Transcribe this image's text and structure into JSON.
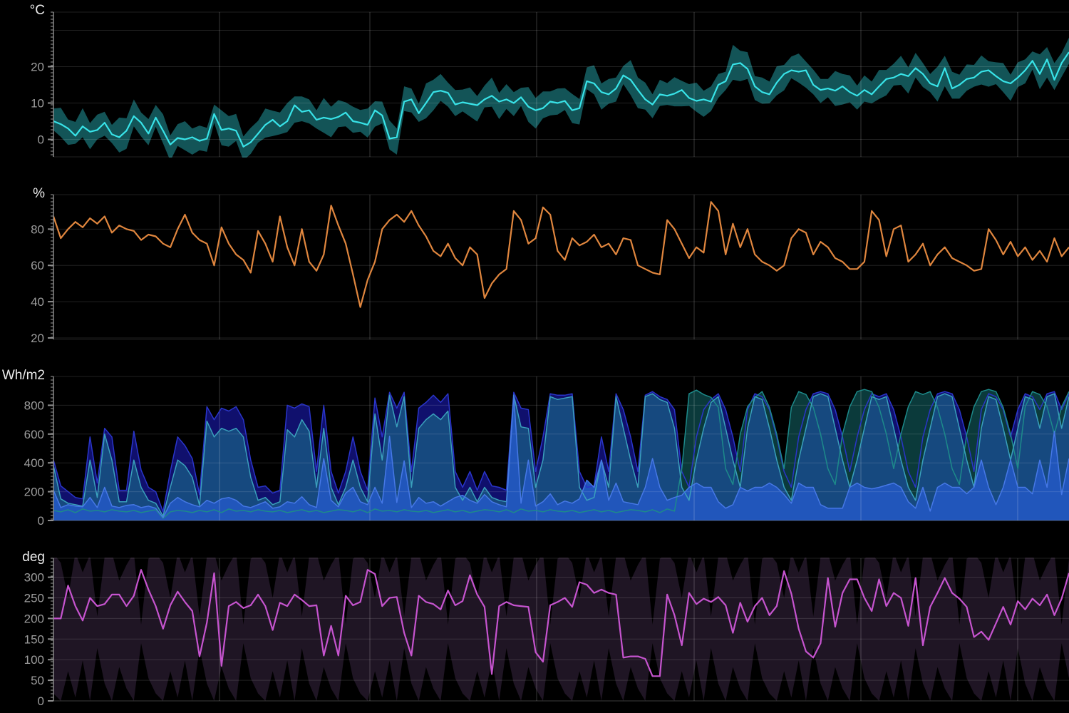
{
  "page": {
    "background": "#000000"
  },
  "chart_data": [
    {
      "type": "line",
      "name": "temperature-with-minmax-band",
      "unit": "°C",
      "ylim": [
        -4.8,
        35
      ],
      "y_ticks": [
        0,
        10,
        20
      ],
      "grid_values": [
        0,
        10,
        20,
        30
      ],
      "line_color": "#38e3e8",
      "band_color": "#135457",
      "mean": [
        5,
        4.2,
        3,
        1,
        3.6,
        2.1,
        2.6,
        4.6,
        1.4,
        0.6,
        2.4,
        6.4,
        4.6,
        1.6,
        6,
        2.4,
        -1.4,
        0.4,
        0,
        0.6,
        -0.4,
        0.2,
        7,
        2.6,
        3,
        2.4,
        -2,
        -0.8,
        1.6,
        4,
        5.4,
        3.6,
        5,
        9.4,
        7.6,
        8,
        5.4,
        6,
        5.6,
        6.2,
        7.4,
        5,
        4.6,
        4,
        8,
        6.6,
        0.2,
        0.6,
        10.4,
        11,
        7.2,
        10,
        13,
        13.4,
        12.8,
        9.6,
        10.2,
        9.8,
        9.4,
        11,
        12,
        10.4,
        11,
        10,
        11.6,
        9,
        8,
        8.6,
        10.4,
        10,
        10.6,
        8,
        8.6,
        16,
        15.4,
        13,
        12.4,
        14,
        17.6,
        16.4,
        13.6,
        11,
        9.6,
        12.4,
        12,
        12.6,
        13.6,
        11.4,
        10.6,
        11,
        10.4,
        15,
        16,
        20.6,
        21,
        19.4,
        14.6,
        13,
        12.4,
        15.6,
        18,
        19,
        18.6,
        19,
        15,
        13.6,
        14,
        13.4,
        14.6,
        13,
        12,
        13.6,
        12.4,
        14.6,
        16.6,
        17,
        18,
        17.4,
        19.6,
        18,
        15.4,
        14.6,
        19.6,
        14,
        15,
        16.6,
        17,
        18.6,
        19,
        17.4,
        16,
        15.4,
        17,
        19,
        21.6,
        18,
        22,
        16.4,
        21,
        24
      ],
      "band_up_pattern": [
        3.5,
        4.5,
        2.5,
        3.8,
        5,
        2.4,
        4.2,
        3,
        2.6,
        5.4,
        3.4,
        4.6,
        2.8,
        4
      ],
      "band_down_pattern": [
        2.5,
        3.5,
        4.5,
        2.2,
        3,
        4.8,
        2.6,
        3.6,
        2.4,
        4.2,
        5,
        2.8,
        3.8,
        3.2
      ]
    },
    {
      "type": "line",
      "name": "relative-humidity",
      "unit": "%",
      "ylim": [
        19.2,
        99
      ],
      "y_ticks": [
        20,
        40,
        60,
        80
      ],
      "grid_values": [
        20,
        40,
        60,
        80
      ],
      "line_color": "#e0863e",
      "values": [
        87,
        75,
        80,
        84,
        81,
        86,
        83,
        87,
        78,
        82,
        80,
        79,
        74,
        77,
        76,
        72,
        70,
        80,
        88,
        78,
        74,
        72,
        60,
        81,
        72,
        66,
        63,
        56,
        79,
        72,
        62,
        87,
        70,
        60,
        80,
        62,
        57,
        66,
        93,
        82,
        72,
        55,
        37,
        52,
        62,
        80,
        85,
        88,
        84,
        90,
        82,
        76,
        68,
        65,
        72,
        64,
        60,
        70,
        66,
        42,
        50,
        55,
        58,
        90,
        85,
        72,
        75,
        92,
        88,
        68,
        63,
        75,
        71,
        73,
        77,
        70,
        72,
        66,
        75,
        74,
        60,
        58,
        56,
        55,
        85,
        80,
        72,
        64,
        70,
        67,
        95,
        90,
        66,
        83,
        70,
        80,
        66,
        62,
        60,
        57,
        60,
        75,
        80,
        78,
        66,
        73,
        70,
        64,
        62,
        58,
        58,
        62,
        90,
        85,
        65,
        80,
        82,
        62,
        66,
        72,
        60,
        66,
        70,
        64,
        62,
        60,
        57,
        58,
        80,
        74,
        66,
        73,
        65,
        70,
        63,
        68,
        62,
        75,
        65,
        70
      ]
    },
    {
      "type": "area",
      "name": "solar-radiation",
      "unit": "Wh/m2",
      "ylim": [
        0,
        1000
      ],
      "y_ticks": [
        0,
        200,
        400,
        600,
        800
      ],
      "grid_values": [
        0,
        200,
        400,
        600,
        800
      ],
      "series": [
        {
          "name": "dark-navy-radiation",
          "fill": "#10106d",
          "stroke": "#2a35c9",
          "values": [
            420,
            240,
            200,
            160,
            150,
            580,
            260,
            640,
            580,
            210,
            210,
            620,
            350,
            230,
            200,
            60,
            340,
            580,
            520,
            430,
            180,
            790,
            700,
            780,
            760,
            790,
            700,
            420,
            230,
            240,
            190,
            210,
            800,
            780,
            810,
            790,
            340,
            800,
            340,
            190,
            340,
            580,
            340,
            210,
            850,
            580,
            890,
            780,
            890,
            340,
            780,
            820,
            870,
            820,
            880,
            340,
            230,
            340,
            210,
            340,
            240,
            230,
            210,
            890,
            780,
            770,
            340,
            580,
            880,
            870,
            870,
            880,
            340,
            230,
            240,
            580,
            340,
            880,
            770,
            580,
            340,
            870,
            895,
            860,
            840,
            770,
            340,
            230,
            580,
            770,
            840,
            880,
            770,
            580,
            340,
            770,
            880,
            860,
            770,
            580,
            340,
            230,
            580,
            770,
            880,
            895,
            880,
            770,
            580,
            340,
            580,
            770,
            880,
            860,
            880,
            770,
            580,
            340,
            230,
            580,
            770,
            880,
            895,
            880,
            770,
            580,
            340,
            770,
            880,
            860,
            770,
            580,
            770,
            880,
            860,
            770,
            880,
            895,
            770,
            880
          ]
        },
        {
          "name": "dark-teal-radiation",
          "fill": "#0b3a3b",
          "stroke": "#1d8a8a",
          "values": [
            70,
            60,
            75,
            55,
            80,
            65,
            70,
            60,
            75,
            65,
            60,
            70,
            55,
            65,
            75,
            15,
            60,
            70,
            65,
            55,
            70,
            60,
            75,
            55,
            80,
            65,
            70,
            60,
            75,
            65,
            60,
            70,
            55,
            65,
            75,
            60,
            70,
            55,
            65,
            75,
            70,
            60,
            75,
            55,
            80,
            65,
            70,
            60,
            75,
            65,
            60,
            70,
            55,
            65,
            75,
            60,
            70,
            55,
            65,
            75,
            70,
            60,
            75,
            55,
            80,
            65,
            70,
            60,
            75,
            65,
            60,
            70,
            55,
            65,
            75,
            60,
            70,
            55,
            65,
            75,
            70,
            60,
            75,
            55,
            80,
            65,
            360,
            880,
            905,
            875,
            855,
            785,
            360,
            250,
            600,
            790,
            855,
            895,
            785,
            600,
            360,
            785,
            895,
            875,
            785,
            600,
            360,
            250,
            600,
            790,
            895,
            910,
            895,
            785,
            600,
            360,
            600,
            790,
            895,
            875,
            895,
            785,
            600,
            360,
            250,
            600,
            790,
            895,
            910,
            895,
            785,
            600,
            360,
            790,
            895,
            875,
            790,
            600,
            790,
            895
          ]
        },
        {
          "name": "medium-blue-radiation",
          "fill": "#16497f",
          "stroke": "#3aa0bc",
          "values": [
            380,
            150,
            120,
            110,
            100,
            420,
            160,
            600,
            420,
            130,
            130,
            420,
            230,
            140,
            120,
            30,
            230,
            420,
            380,
            300,
            105,
            690,
            580,
            640,
            620,
            640,
            580,
            300,
            140,
            160,
            110,
            130,
            630,
            580,
            700,
            620,
            230,
            640,
            230,
            110,
            230,
            420,
            230,
            130,
            740,
            420,
            870,
            650,
            860,
            230,
            640,
            700,
            740,
            700,
            760,
            230,
            140,
            230,
            130,
            230,
            160,
            140,
            130,
            870,
            650,
            640,
            230,
            420,
            860,
            840,
            850,
            860,
            230,
            140,
            160,
            420,
            230,
            860,
            640,
            420,
            230,
            860,
            880,
            840,
            820,
            640,
            230,
            140,
            420,
            640,
            820,
            860,
            640,
            420,
            230,
            640,
            860,
            840,
            640,
            420,
            230,
            140,
            420,
            640,
            860,
            880,
            860,
            640,
            420,
            230,
            420,
            640,
            860,
            840,
            860,
            640,
            420,
            230,
            140,
            420,
            640,
            860,
            880,
            860,
            640,
            420,
            230,
            640,
            860,
            840,
            640,
            420,
            640,
            860,
            840,
            640,
            860,
            880,
            640,
            860
          ]
        },
        {
          "name": "bright-blue-radiation",
          "fill": "#2156bb",
          "stroke": "#4678e6",
          "values": [
            210,
            90,
            110,
            100,
            95,
            160,
            90,
            230,
            100,
            90,
            105,
            110,
            90,
            100,
            85,
            20,
            120,
            160,
            130,
            110,
            95,
            140,
            120,
            150,
            160,
            140,
            100,
            90,
            110,
            130,
            85,
            95,
            130,
            120,
            165,
            110,
            90,
            430,
            140,
            95,
            190,
            230,
            130,
            110,
            230,
            120,
            585,
            125,
            415,
            90,
            160,
            120,
            130,
            100,
            130,
            160,
            175,
            140,
            120,
            180,
            130,
            110,
            95,
            865,
            120,
            420,
            100,
            130,
            185,
            110,
            135,
            120,
            150,
            280,
            230,
            420,
            140,
            260,
            130,
            120,
            110,
            230,
            430,
            230,
            140,
            160,
            175,
            230,
            260,
            230,
            230,
            130,
            85,
            110,
            230,
            205,
            230,
            230,
            260,
            230,
            180,
            120,
            260,
            230,
            230,
            110,
            85,
            85,
            85,
            230,
            260,
            230,
            220,
            230,
            245,
            260,
            230,
            130,
            85,
            230,
            65,
            230,
            260,
            230,
            230,
            185,
            230,
            420,
            230,
            110,
            230,
            420,
            230,
            230,
            185,
            420,
            230,
            620,
            180,
            430
          ]
        }
      ]
    },
    {
      "type": "line",
      "name": "wind-direction-with-minmax-band",
      "unit": "deg",
      "ylim": [
        0,
        346
      ],
      "y_ticks": [
        0,
        50,
        100,
        150,
        200,
        250,
        300
      ],
      "grid_values": [
        0,
        50,
        100,
        150,
        200,
        250,
        300
      ],
      "line_color": "#c654cf",
      "band_color": "#1f1524",
      "values": [
        200,
        200,
        280,
        230,
        195,
        250,
        230,
        235,
        258,
        258,
        230,
        255,
        318,
        270,
        230,
        175,
        232,
        265,
        240,
        218,
        108,
        190,
        310,
        85,
        230,
        240,
        225,
        232,
        258,
        230,
        172,
        238,
        230,
        258,
        245,
        230,
        232,
        110,
        182,
        110,
        255,
        232,
        240,
        318,
        308,
        230,
        250,
        252,
        165,
        110,
        255,
        240,
        235,
        222,
        268,
        232,
        242,
        305,
        258,
        228,
        65,
        230,
        240,
        232,
        230,
        228,
        118,
        95,
        232,
        240,
        250,
        228,
        288,
        282,
        262,
        270,
        262,
        258,
        105,
        108,
        108,
        102,
        60,
        60,
        258,
        208,
        135,
        262,
        235,
        248,
        240,
        252,
        232,
        165,
        238,
        192,
        230,
        250,
        208,
        230,
        315,
        260,
        175,
        120,
        105,
        140,
        298,
        180,
        262,
        295,
        295,
        250,
        218,
        295,
        230,
        262,
        250,
        182,
        298,
        135,
        228,
        262,
        298,
        262,
        248,
        228,
        155,
        168,
        148,
        188,
        228,
        185,
        242,
        222,
        248,
        232,
        258,
        208,
        248,
        310
      ],
      "band_max_pattern": [
        358,
        335,
        250,
        360,
        312,
        355,
        205,
        350,
        360,
        292,
        330,
        360,
        185,
        345
      ],
      "band_min_pattern": [
        18,
        0,
        72,
        8,
        98,
        0,
        128,
        42,
        0,
        82,
        30,
        0,
        140,
        55
      ]
    }
  ],
  "axis_style": {
    "tick_label_color": "#9c9c9c",
    "unit_label_color": "#ededed",
    "axis_color": "#8f8f8f",
    "h_grid_color": "rgba(255,255,255,0.13)",
    "v_grid_color": "rgba(255,255,255,0.22)"
  }
}
